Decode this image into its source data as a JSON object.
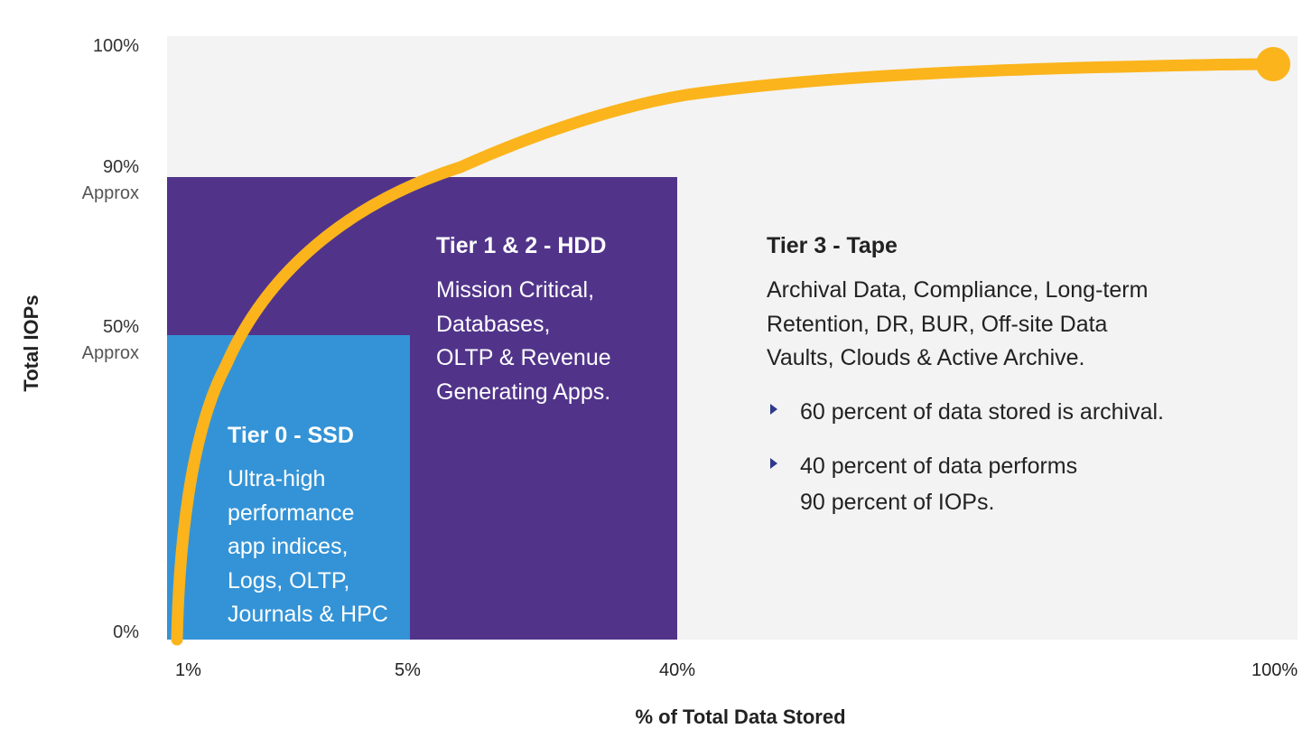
{
  "chart_data": {
    "type": "area",
    "xlabel": "% of Total Data Stored",
    "ylabel": "Total IOPs",
    "x_ticks": [
      "1%",
      "5%",
      "40%",
      "100%"
    ],
    "y_ticks": [
      {
        "value": "100%",
        "note": ""
      },
      {
        "value": "90%",
        "note": "Approx"
      },
      {
        "value": "50%",
        "note": "Approx"
      },
      {
        "value": "0%",
        "note": ""
      }
    ],
    "curve_color": "#fbb41c",
    "tiers": [
      {
        "name": "Tier 0 - SSD",
        "x_max": "5%",
        "y_max": "50%",
        "color": "#3493d6",
        "description": "Ultra-high\nperformance\napp indices,\nLogs, OLTP,\nJournals & HPC"
      },
      {
        "name": "Tier 1 & 2 - HDD",
        "x_max": "40%",
        "y_max": "90%",
        "color": "#51348a",
        "description": "Mission Critical,\nDatabases,\nOLTP & Revenue\nGenerating Apps."
      },
      {
        "name": "Tier 3 - Tape",
        "x_max": "100%",
        "y_max": "100%",
        "color": "#f3f3f3",
        "description": "Archival Data, Compliance, Long-term\nRetention, DR, BUR, Off-site Data\nVaults, Clouds & Active Archive.",
        "bullets": [
          "60 percent of data stored is archival.",
          "40 percent of data performs\n90 percent of IOPs."
        ]
      }
    ]
  }
}
